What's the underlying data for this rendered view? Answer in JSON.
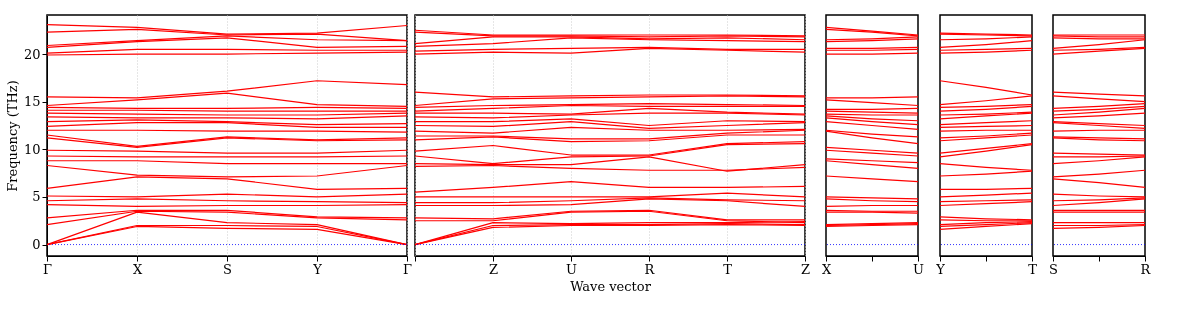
{
  "chart_data": [
    {
      "type": "line",
      "ylabel": "Frequency (THz)",
      "grid": "x",
      "line_style": "solid",
      "marker": "none",
      "legend": false,
      "categories": [
        "Γ",
        "X",
        "S",
        "Y",
        "Γ"
      ],
      "ylim": [
        -1.2,
        24.1
      ],
      "yticks": [
        0,
        5,
        10,
        15,
        20
      ],
      "ref_lines": [
        {
          "axis": "y",
          "value": 0,
          "color": "#0000ff",
          "line_style": "dotted"
        }
      ],
      "series": [
        {
          "color": "#ff0000",
          "values": [
            0,
            1.9,
            1.7,
            1.6,
            0
          ]
        },
        {
          "color": "#ff0000",
          "values": [
            0,
            2.0,
            2.0,
            1.9,
            0
          ]
        },
        {
          "color": "#ff0000",
          "values": [
            0,
            3.4,
            2.3,
            2.1,
            0
          ]
        },
        {
          "color": "#ff0000",
          "values": [
            2.1,
            3.5,
            3.4,
            2.8,
            2.6
          ]
        },
        {
          "color": "#ff0000",
          "values": [
            2.8,
            3.6,
            3.6,
            2.9,
            2.8
          ]
        },
        {
          "color": "#ff0000",
          "values": [
            4.2,
            4.0,
            4.1,
            4.1,
            4.2
          ]
        },
        {
          "color": "#ff0000",
          "values": [
            4.6,
            4.8,
            4.6,
            4.5,
            4.4
          ]
        },
        {
          "color": "#ff0000",
          "values": [
            5.1,
            5.0,
            5.3,
            5.0,
            5.3
          ]
        },
        {
          "color": "#ff0000",
          "values": [
            5.9,
            7.1,
            6.9,
            5.8,
            5.9
          ]
        },
        {
          "color": "#ff0000",
          "values": [
            8.3,
            7.3,
            7.1,
            7.2,
            8.3
          ]
        },
        {
          "color": "#ff0000",
          "values": [
            8.8,
            8.8,
            8.5,
            8.5,
            8.5
          ]
        },
        {
          "color": "#ff0000",
          "values": [
            9.3,
            9.2,
            9.2,
            9.2,
            9.3
          ]
        },
        {
          "color": "#ff0000",
          "values": [
            9.9,
            9.8,
            9.6,
            9.6,
            9.9
          ]
        },
        {
          "color": "#ff0000",
          "values": [
            11.2,
            10.2,
            11.2,
            10.9,
            11.0
          ]
        },
        {
          "color": "#ff0000",
          "values": [
            11.5,
            10.3,
            11.3,
            11.0,
            11.2
          ]
        },
        {
          "color": "#ff0000",
          "values": [
            12.0,
            12.0,
            11.9,
            11.9,
            11.8
          ]
        },
        {
          "color": "#ff0000",
          "values": [
            12.4,
            12.8,
            12.8,
            12.3,
            12.3
          ]
        },
        {
          "color": "#ff0000",
          "values": [
            12.9,
            13.1,
            12.9,
            12.6,
            12.7
          ]
        },
        {
          "color": "#ff0000",
          "values": [
            13.4,
            13.3,
            13.3,
            13.2,
            13.5
          ]
        },
        {
          "color": "#ff0000",
          "values": [
            13.8,
            13.7,
            13.6,
            13.6,
            13.8
          ]
        },
        {
          "color": "#ff0000",
          "values": [
            14.1,
            14.1,
            14.0,
            14.0,
            14.0
          ]
        },
        {
          "color": "#ff0000",
          "values": [
            14.4,
            14.3,
            14.3,
            14.4,
            14.3
          ]
        },
        {
          "color": "#ff0000",
          "values": [
            14.6,
            15.2,
            15.9,
            14.7,
            14.5
          ]
        },
        {
          "color": "#ff0000",
          "values": [
            15.5,
            15.4,
            16.1,
            17.2,
            16.8
          ]
        },
        {
          "color": "#ff0000",
          "values": [
            19.9,
            20.0,
            20.0,
            20.1,
            20.2
          ]
        },
        {
          "color": "#ff0000",
          "values": [
            20.1,
            20.5,
            20.5,
            20.4,
            20.4
          ]
        },
        {
          "color": "#ff0000",
          "values": [
            20.7,
            21.3,
            21.7,
            20.7,
            20.8
          ]
        },
        {
          "color": "#ff0000",
          "values": [
            20.9,
            21.4,
            21.9,
            21.5,
            21.4
          ]
        },
        {
          "color": "#ff0000",
          "values": [
            22.3,
            22.6,
            22.0,
            22.1,
            21.4
          ]
        },
        {
          "color": "#ff0000",
          "values": [
            23.1,
            22.8,
            22.1,
            22.2,
            23.0
          ]
        }
      ]
    },
    {
      "type": "line",
      "xlabel": "Wave vector",
      "tick_labels": "x",
      "grid": "x",
      "line_style": "solid",
      "marker": "none",
      "legend": false,
      "categories": [
        null,
        "Z",
        "U",
        "R",
        "T",
        "Z"
      ],
      "ylim": [
        -1.2,
        24.1
      ],
      "ref_lines": [
        {
          "axis": "y",
          "value": 0,
          "color": "#0000ff",
          "line_style": "dotted"
        }
      ],
      "series": [
        {
          "color": "#ff0000",
          "values": [
            0,
            1.8,
            2.0,
            2.0,
            2.1,
            2.0
          ]
        },
        {
          "color": "#ff0000",
          "values": [
            0,
            2.0,
            2.1,
            2.1,
            2.2,
            2.1
          ]
        },
        {
          "color": "#ff0000",
          "values": [
            0,
            2.3,
            2.2,
            2.3,
            2.3,
            2.4
          ]
        },
        {
          "color": "#ff0000",
          "values": [
            2.5,
            2.5,
            3.4,
            3.5,
            2.5,
            2.3
          ]
        },
        {
          "color": "#ff0000",
          "values": [
            2.8,
            2.7,
            3.5,
            3.6,
            2.6,
            2.6
          ]
        },
        {
          "color": "#ff0000",
          "values": [
            4.1,
            4.1,
            4.2,
            4.8,
            4.6,
            4.0
          ]
        },
        {
          "color": "#ff0000",
          "values": [
            4.4,
            4.4,
            4.6,
            4.9,
            4.7,
            4.6
          ]
        },
        {
          "color": "#ff0000",
          "values": [
            5.0,
            5.0,
            5.0,
            5.0,
            5.4,
            5.0
          ]
        },
        {
          "color": "#ff0000",
          "values": [
            5.5,
            6.0,
            6.6,
            6.0,
            6.0,
            6.1
          ]
        },
        {
          "color": "#ff0000",
          "values": [
            8.2,
            8.3,
            8.0,
            7.8,
            7.8,
            8.1
          ]
        },
        {
          "color": "#ff0000",
          "values": [
            8.5,
            8.4,
            8.4,
            9.2,
            7.7,
            8.4
          ]
        },
        {
          "color": "#ff0000",
          "values": [
            9.3,
            8.5,
            9.2,
            9.3,
            10.5,
            10.6
          ]
        },
        {
          "color": "#ff0000",
          "values": [
            9.8,
            10.4,
            9.4,
            9.4,
            10.6,
            10.8
          ]
        },
        {
          "color": "#ff0000",
          "values": [
            11.0,
            11.3,
            10.8,
            10.9,
            11.5,
            11.5
          ]
        },
        {
          "color": "#ff0000",
          "values": [
            11.4,
            11.4,
            11.1,
            11.1,
            11.7,
            12.0
          ]
        },
        {
          "color": "#ff0000",
          "values": [
            11.9,
            11.7,
            12.3,
            12.0,
            12.0,
            12.1
          ]
        },
        {
          "color": "#ff0000",
          "values": [
            12.5,
            12.4,
            12.9,
            12.2,
            12.5,
            12.8
          ]
        },
        {
          "color": "#ff0000",
          "values": [
            12.9,
            12.9,
            13.2,
            12.5,
            13.0,
            12.9
          ]
        },
        {
          "color": "#ff0000",
          "values": [
            13.4,
            13.3,
            13.6,
            13.8,
            13.8,
            13.6
          ]
        },
        {
          "color": "#ff0000",
          "values": [
            13.8,
            13.8,
            13.7,
            14.3,
            13.9,
            13.7
          ]
        },
        {
          "color": "#ff0000",
          "values": [
            14.0,
            14.3,
            14.6,
            14.5,
            14.5,
            14.5
          ]
        },
        {
          "color": "#ff0000",
          "values": [
            14.4,
            14.6,
            14.7,
            14.8,
            14.7,
            14.6
          ]
        },
        {
          "color": "#ff0000",
          "values": [
            14.6,
            15.3,
            15.4,
            15.5,
            15.6,
            15.5
          ]
        },
        {
          "color": "#ff0000",
          "values": [
            16.0,
            15.5,
            15.6,
            15.7,
            15.7,
            15.6
          ]
        },
        {
          "color": "#ff0000",
          "values": [
            20.0,
            20.2,
            20.1,
            20.6,
            20.4,
            20.2
          ]
        },
        {
          "color": "#ff0000",
          "values": [
            20.3,
            20.5,
            20.6,
            20.7,
            20.5,
            20.5
          ]
        },
        {
          "color": "#ff0000",
          "values": [
            20.8,
            21.1,
            21.7,
            21.5,
            21.4,
            21.3
          ]
        },
        {
          "color": "#ff0000",
          "values": [
            21.1,
            21.8,
            21.8,
            21.6,
            21.7,
            21.5
          ]
        },
        {
          "color": "#ff0000",
          "values": [
            22.3,
            21.9,
            21.9,
            21.8,
            21.9,
            21.8
          ]
        },
        {
          "color": "#ff0000",
          "values": [
            22.5,
            22.0,
            22.0,
            22.0,
            22.0,
            21.9
          ]
        }
      ]
    },
    {
      "type": "line",
      "tick_labels": "x",
      "line_style": "solid",
      "marker": "none",
      "legend": false,
      "categories": [
        "X",
        null,
        "U"
      ],
      "ylim": [
        -1.2,
        24.1
      ],
      "ref_lines": [
        {
          "axis": "y",
          "value": 0,
          "color": "#0000ff",
          "line_style": "dotted"
        }
      ],
      "series": [
        {
          "color": "#ff0000",
          "values": [
            1.9,
            2.0,
            2.1
          ]
        },
        {
          "color": "#ff0000",
          "values": [
            2.0,
            2.1,
            2.2
          ]
        },
        {
          "color": "#ff0000",
          "values": [
            2.1,
            2.2,
            2.3
          ]
        },
        {
          "color": "#ff0000",
          "values": [
            3.4,
            3.4,
            3.3
          ]
        },
        {
          "color": "#ff0000",
          "values": [
            3.6,
            3.5,
            3.5
          ]
        },
        {
          "color": "#ff0000",
          "values": [
            4.0,
            4.1,
            4.1
          ]
        },
        {
          "color": "#ff0000",
          "values": [
            4.8,
            4.6,
            4.5
          ]
        },
        {
          "color": "#ff0000",
          "values": [
            5.0,
            4.9,
            4.8
          ]
        },
        {
          "color": "#ff0000",
          "values": [
            7.2,
            6.9,
            6.6
          ]
        },
        {
          "color": "#ff0000",
          "values": [
            8.8,
            8.4,
            8.0
          ]
        },
        {
          "color": "#ff0000",
          "values": [
            9.0,
            8.8,
            8.6
          ]
        },
        {
          "color": "#ff0000",
          "values": [
            9.9,
            9.6,
            9.3
          ]
        },
        {
          "color": "#ff0000",
          "values": [
            10.2,
            9.9,
            9.6
          ]
        },
        {
          "color": "#ff0000",
          "values": [
            11.9,
            11.2,
            10.6
          ]
        },
        {
          "color": "#ff0000",
          "values": [
            12.0,
            11.6,
            11.3
          ]
        },
        {
          "color": "#ff0000",
          "values": [
            12.9,
            12.5,
            12.1
          ]
        },
        {
          "color": "#ff0000",
          "values": [
            13.3,
            12.9,
            12.6
          ]
        },
        {
          "color": "#ff0000",
          "values": [
            13.5,
            13.2,
            13.0
          ]
        },
        {
          "color": "#ff0000",
          "values": [
            13.7,
            13.6,
            13.6
          ]
        },
        {
          "color": "#ff0000",
          "values": [
            14.0,
            13.9,
            13.8
          ]
        },
        {
          "color": "#ff0000",
          "values": [
            14.2,
            14.2,
            14.3
          ]
        },
        {
          "color": "#ff0000",
          "values": [
            15.2,
            14.9,
            14.6
          ]
        },
        {
          "color": "#ff0000",
          "values": [
            15.4,
            15.4,
            15.5
          ]
        },
        {
          "color": "#ff0000",
          "values": [
            20.0,
            20.0,
            20.1
          ]
        },
        {
          "color": "#ff0000",
          "values": [
            20.4,
            20.4,
            20.5
          ]
        },
        {
          "color": "#ff0000",
          "values": [
            20.6,
            20.6,
            20.7
          ]
        },
        {
          "color": "#ff0000",
          "values": [
            21.3,
            21.4,
            21.6
          ]
        },
        {
          "color": "#ff0000",
          "values": [
            21.5,
            21.6,
            21.8
          ]
        },
        {
          "color": "#ff0000",
          "values": [
            22.6,
            22.3,
            21.9
          ]
        },
        {
          "color": "#ff0000",
          "values": [
            22.8,
            22.4,
            22.0
          ]
        }
      ]
    },
    {
      "type": "line",
      "tick_labels": "x",
      "line_style": "solid",
      "marker": "none",
      "legend": false,
      "categories": [
        "Y",
        null,
        "T"
      ],
      "ylim": [
        -1.2,
        24.1
      ],
      "ref_lines": [
        {
          "axis": "y",
          "value": 0,
          "color": "#0000ff",
          "line_style": "dotted"
        }
      ],
      "series": [
        {
          "color": "#ff0000",
          "values": [
            1.6,
            1.9,
            2.2
          ]
        },
        {
          "color": "#ff0000",
          "values": [
            1.9,
            2.1,
            2.3
          ]
        },
        {
          "color": "#ff0000",
          "values": [
            2.1,
            2.3,
            2.4
          ]
        },
        {
          "color": "#ff0000",
          "values": [
            2.6,
            2.5,
            2.5
          ]
        },
        {
          "color": "#ff0000",
          "values": [
            2.9,
            2.7,
            2.6
          ]
        },
        {
          "color": "#ff0000",
          "values": [
            4.1,
            4.3,
            4.5
          ]
        },
        {
          "color": "#ff0000",
          "values": [
            4.5,
            4.6,
            4.7
          ]
        },
        {
          "color": "#ff0000",
          "values": [
            5.0,
            5.2,
            5.4
          ]
        },
        {
          "color": "#ff0000",
          "values": [
            5.8,
            5.8,
            5.9
          ]
        },
        {
          "color": "#ff0000",
          "values": [
            7.2,
            7.4,
            7.7
          ]
        },
        {
          "color": "#ff0000",
          "values": [
            8.5,
            8.1,
            7.8
          ]
        },
        {
          "color": "#ff0000",
          "values": [
            9.2,
            9.8,
            10.5
          ]
        },
        {
          "color": "#ff0000",
          "values": [
            9.6,
            10.1,
            10.6
          ]
        },
        {
          "color": "#ff0000",
          "values": [
            10.9,
            11.2,
            11.5
          ]
        },
        {
          "color": "#ff0000",
          "values": [
            11.2,
            11.4,
            11.7
          ]
        },
        {
          "color": "#ff0000",
          "values": [
            11.9,
            12.0,
            12.0
          ]
        },
        {
          "color": "#ff0000",
          "values": [
            12.3,
            12.4,
            12.5
          ]
        },
        {
          "color": "#ff0000",
          "values": [
            12.6,
            12.8,
            13.0
          ]
        },
        {
          "color": "#ff0000",
          "values": [
            13.2,
            13.5,
            13.8
          ]
        },
        {
          "color": "#ff0000",
          "values": [
            13.6,
            13.7,
            13.9
          ]
        },
        {
          "color": "#ff0000",
          "values": [
            14.0,
            14.2,
            14.5
          ]
        },
        {
          "color": "#ff0000",
          "values": [
            14.4,
            14.5,
            14.7
          ]
        },
        {
          "color": "#ff0000",
          "values": [
            14.7,
            15.1,
            15.6
          ]
        },
        {
          "color": "#ff0000",
          "values": [
            17.2,
            16.5,
            15.7
          ]
        },
        {
          "color": "#ff0000",
          "values": [
            20.1,
            20.2,
            20.4
          ]
        },
        {
          "color": "#ff0000",
          "values": [
            20.4,
            20.5,
            20.6
          ]
        },
        {
          "color": "#ff0000",
          "values": [
            20.7,
            21.0,
            21.4
          ]
        },
        {
          "color": "#ff0000",
          "values": [
            21.5,
            21.6,
            21.8
          ]
        },
        {
          "color": "#ff0000",
          "values": [
            22.1,
            22.0,
            21.9
          ]
        },
        {
          "color": "#ff0000",
          "values": [
            22.2,
            22.1,
            22.0
          ]
        }
      ]
    },
    {
      "type": "line",
      "tick_labels": "x",
      "line_style": "solid",
      "marker": "none",
      "legend": false,
      "categories": [
        "S",
        null,
        "R"
      ],
      "ylim": [
        -1.2,
        24.1
      ],
      "ref_lines": [
        {
          "axis": "y",
          "value": 0,
          "color": "#0000ff",
          "line_style": "dotted"
        }
      ],
      "series": [
        {
          "color": "#ff0000",
          "values": [
            1.7,
            1.8,
            2.0
          ]
        },
        {
          "color": "#ff0000",
          "values": [
            2.0,
            2.0,
            2.1
          ]
        },
        {
          "color": "#ff0000",
          "values": [
            2.3,
            2.3,
            2.3
          ]
        },
        {
          "color": "#ff0000",
          "values": [
            3.4,
            3.4,
            3.4
          ]
        },
        {
          "color": "#ff0000",
          "values": [
            3.6,
            3.6,
            3.6
          ]
        },
        {
          "color": "#ff0000",
          "values": [
            4.1,
            4.4,
            4.8
          ]
        },
        {
          "color": "#ff0000",
          "values": [
            4.6,
            4.7,
            4.9
          ]
        },
        {
          "color": "#ff0000",
          "values": [
            5.3,
            5.1,
            5.0
          ]
        },
        {
          "color": "#ff0000",
          "values": [
            6.9,
            6.5,
            6.0
          ]
        },
        {
          "color": "#ff0000",
          "values": [
            7.1,
            7.4,
            7.8
          ]
        },
        {
          "color": "#ff0000",
          "values": [
            8.5,
            8.8,
            9.2
          ]
        },
        {
          "color": "#ff0000",
          "values": [
            9.2,
            9.2,
            9.3
          ]
        },
        {
          "color": "#ff0000",
          "values": [
            9.6,
            9.5,
            9.4
          ]
        },
        {
          "color": "#ff0000",
          "values": [
            11.2,
            11.0,
            10.9
          ]
        },
        {
          "color": "#ff0000",
          "values": [
            11.3,
            11.2,
            11.1
          ]
        },
        {
          "color": "#ff0000",
          "values": [
            11.9,
            12.0,
            12.0
          ]
        },
        {
          "color": "#ff0000",
          "values": [
            12.8,
            12.5,
            12.2
          ]
        },
        {
          "color": "#ff0000",
          "values": [
            12.9,
            12.7,
            12.5
          ]
        },
        {
          "color": "#ff0000",
          "values": [
            13.3,
            13.5,
            13.8
          ]
        },
        {
          "color": "#ff0000",
          "values": [
            13.6,
            13.9,
            14.3
          ]
        },
        {
          "color": "#ff0000",
          "values": [
            14.0,
            14.2,
            14.5
          ]
        },
        {
          "color": "#ff0000",
          "values": [
            14.3,
            14.5,
            14.8
          ]
        },
        {
          "color": "#ff0000",
          "values": [
            15.6,
            15.3,
            15.0
          ]
        },
        {
          "color": "#ff0000",
          "values": [
            16.0,
            15.8,
            15.6
          ]
        },
        {
          "color": "#ff0000",
          "values": [
            20.0,
            20.3,
            20.6
          ]
        },
        {
          "color": "#ff0000",
          "values": [
            20.4,
            20.5,
            20.7
          ]
        },
        {
          "color": "#ff0000",
          "values": [
            20.6,
            21.0,
            21.5
          ]
        },
        {
          "color": "#ff0000",
          "values": [
            21.7,
            21.6,
            21.6
          ]
        },
        {
          "color": "#ff0000",
          "values": [
            21.9,
            21.8,
            21.8
          ]
        },
        {
          "color": "#ff0000",
          "values": [
            22.0,
            22.0,
            22.0
          ]
        }
      ]
    }
  ]
}
